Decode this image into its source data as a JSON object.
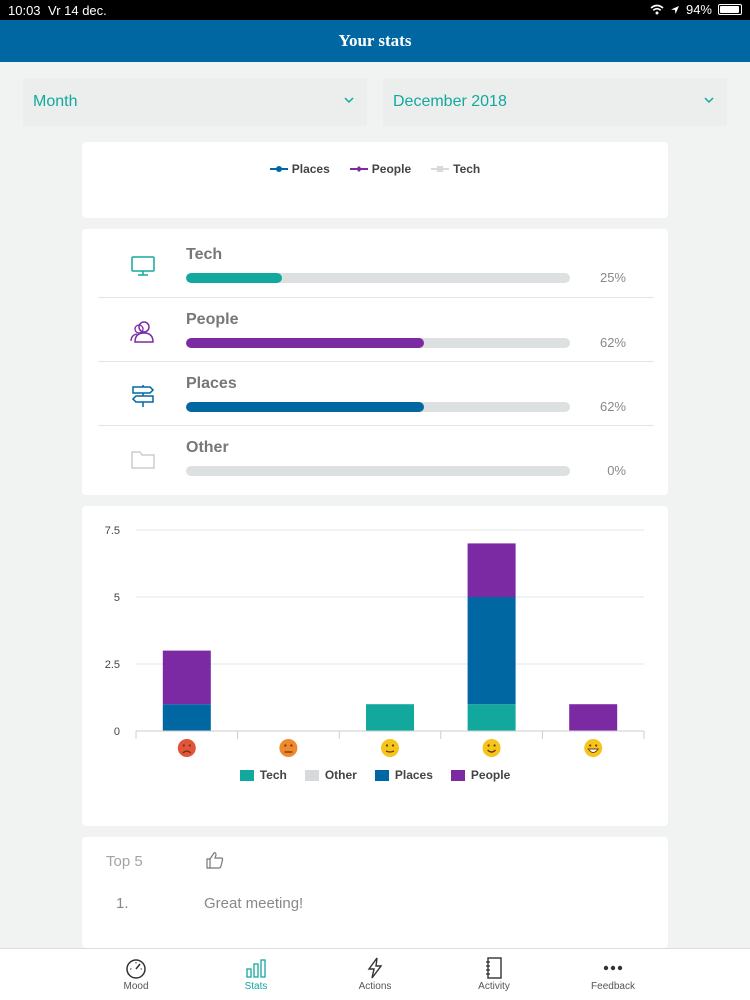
{
  "status_bar": {
    "time": "10:03",
    "date": "Vr 14 dec.",
    "battery": "94%",
    "battery_level": 0.94
  },
  "header": {
    "title": "Your stats"
  },
  "filters": {
    "period": "Month",
    "month": "December 2018"
  },
  "line_legend": [
    {
      "label": "Places",
      "color": "#0067a3"
    },
    {
      "label": "People",
      "color": "#7b2aa4"
    },
    {
      "label": "Tech",
      "color": "#d6dadb"
    }
  ],
  "categories": [
    {
      "label": "Tech",
      "percent": "25%",
      "value": 0.25,
      "color": "#13a89e",
      "icon": "monitor-icon"
    },
    {
      "label": "People",
      "percent": "62%",
      "value": 0.62,
      "color": "#7b2aa4",
      "icon": "people-icon"
    },
    {
      "label": "Places",
      "percent": "62%",
      "value": 0.62,
      "color": "#0067a3",
      "icon": "signpost-icon"
    },
    {
      "label": "Other",
      "percent": "0%",
      "value": 0,
      "color": "#dce0e1",
      "icon": "folder-icon"
    }
  ],
  "chart_data": {
    "type": "bar",
    "stacked": true,
    "categories": [
      "very-sad-face",
      "sad-face",
      "neutral-face",
      "happy-face",
      "very-happy-face"
    ],
    "ylim": [
      0,
      7.5
    ],
    "yticks": [
      "0",
      "2.5",
      "5",
      "7.5"
    ],
    "grid": true,
    "legend_position": "bottom",
    "series": [
      {
        "name": "Tech",
        "color": "#13a89e",
        "values": [
          0,
          0,
          1,
          1,
          0
        ]
      },
      {
        "name": "Other",
        "color": "#d6dadb",
        "values": [
          0,
          0,
          0,
          0,
          0
        ]
      },
      {
        "name": "Places",
        "color": "#0067a3",
        "values": [
          1,
          0,
          0,
          4,
          0
        ]
      },
      {
        "name": "People",
        "color": "#7b2aa4",
        "values": [
          2,
          0,
          0,
          2,
          1
        ]
      }
    ]
  },
  "top5": {
    "title": "Top 5",
    "items": [
      {
        "rank": "1.",
        "text": "Great meeting!"
      }
    ]
  },
  "tabs": [
    {
      "label": "Mood",
      "icon": "gauge-icon"
    },
    {
      "label": "Stats",
      "icon": "bar-chart-icon",
      "active": true
    },
    {
      "label": "Actions",
      "icon": "lightning-icon"
    },
    {
      "label": "Activity",
      "icon": "notebook-icon"
    },
    {
      "label": "Feedback",
      "icon": "more-dots-icon"
    }
  ]
}
